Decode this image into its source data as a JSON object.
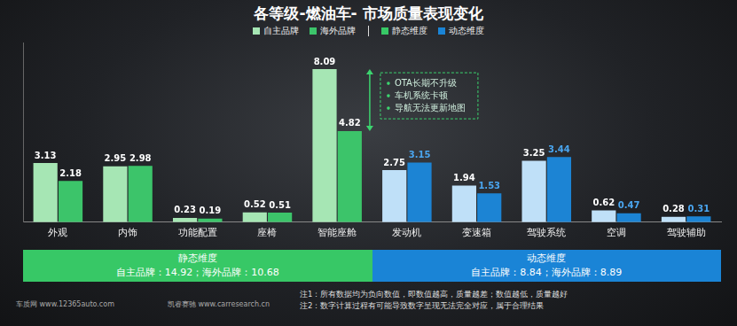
{
  "chart_data": {
    "type": "bar",
    "title": "各等级-燃油车- 市场质量表现变化",
    "categories": [
      "外观",
      "内饰",
      "功能配置",
      "座椅",
      "智能座舱",
      "发动机",
      "变速箱",
      "驾驶系统",
      "空调",
      "驾驶辅助"
    ],
    "series": [
      {
        "name": "自主品牌",
        "color": "#a6e6b4",
        "colors": [
          "#a6e6b4",
          "#a6e6b4",
          "#a6e6b4",
          "#a6e6b4",
          "#a6e6b4",
          "#bfe0f8",
          "#bfe0f8",
          "#bfe0f8",
          "#bfe0f8",
          "#bfe0f8"
        ],
        "values": [
          3.13,
          2.95,
          0.23,
          0.52,
          8.09,
          2.75,
          1.94,
          3.25,
          0.62,
          0.28
        ]
      },
      {
        "name": "海外品牌",
        "color": "#3cc46a",
        "colors": [
          "#3cc46a",
          "#3cc46a",
          "#3cc46a",
          "#3cc46a",
          "#3cc46a",
          "#1c84d4",
          "#1c84d4",
          "#1c84d4",
          "#1c84d4",
          "#1c84d4"
        ],
        "values": [
          2.18,
          2.98,
          0.19,
          0.51,
          4.82,
          3.15,
          1.53,
          3.44,
          0.47,
          0.31
        ]
      }
    ],
    "ylim": [
      0,
      9.5
    ],
    "grid": false,
    "data_labels": true,
    "tick_labels": "x",
    "legend": "top",
    "groups": [
      {
        "name": "静态维度",
        "color": "#37c866",
        "categories": [
          "外观",
          "内饰",
          "功能配置",
          "座椅",
          "智能座舱"
        ],
        "summary": "自主品牌：14.92；海外品牌：10.68"
      },
      {
        "name": "动态维度",
        "color": "#1a84d6",
        "categories": [
          "发动机",
          "变速箱",
          "驾驶系统",
          "空调",
          "驾驶辅助"
        ],
        "summary": "自主品牌：8.84；海外品牌：8.89"
      }
    ],
    "annotations": [
      {
        "category": "智能座舱",
        "text": [
          "OTA长期不升级",
          "车机系统卡顿",
          "导航无法更新地图"
        ]
      }
    ],
    "sources": [
      "车质网 www.12365auto.com",
      "凯睿赛驰 www.carresearch.cn"
    ],
    "notes": [
      "注1：所有数据均为负向数值，即数值越高，质量越差；数值越低，质量越好",
      "注2：数字计算过程有可能导致数字呈现无法完全对应，属于合理结果"
    ]
  }
}
